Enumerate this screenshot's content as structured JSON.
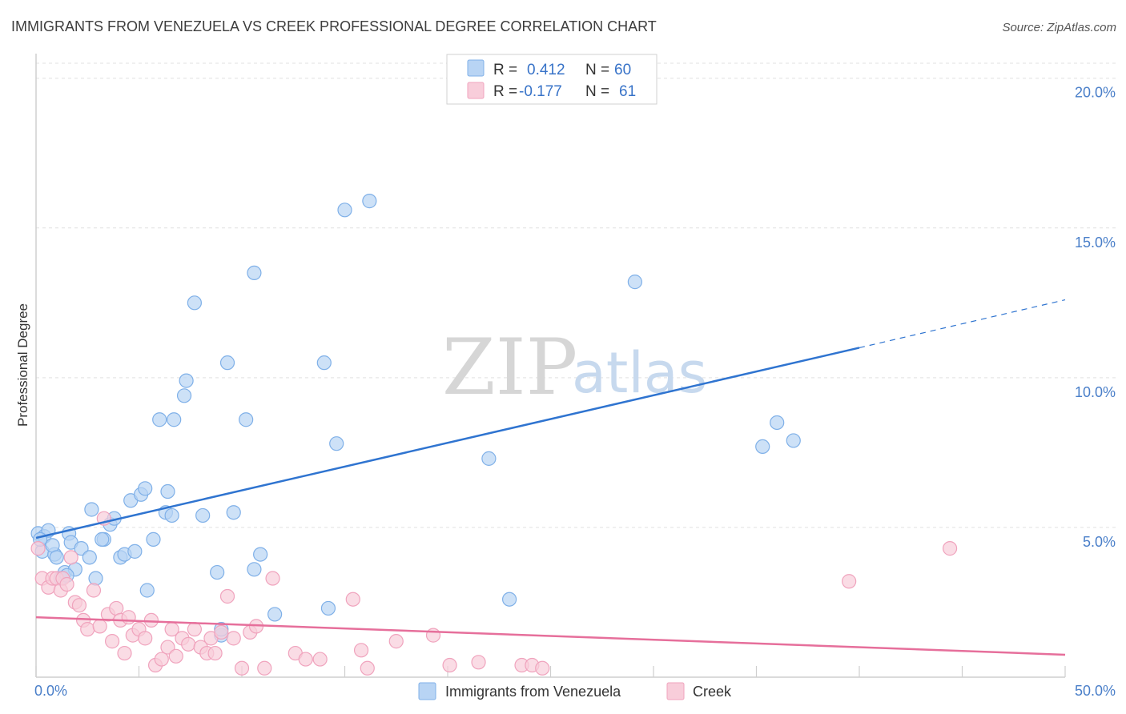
{
  "chart_data": {
    "type": "scatter",
    "title": "IMMIGRANTS FROM VENEZUELA VS CREEK PROFESSIONAL DEGREE CORRELATION CHART",
    "source": "Source: ZipAtlas.com",
    "ylabel": "Professional Degree",
    "xlabel": "",
    "xlim": [
      0,
      50
    ],
    "ylim": [
      0,
      20.5
    ],
    "x_ticks": [
      {
        "value": 0,
        "label": "0.0%"
      },
      {
        "value": 50,
        "label": "50.0%"
      }
    ],
    "y_ticks": [
      {
        "value": 5,
        "label": "5.0%"
      },
      {
        "value": 10,
        "label": "10.0%"
      },
      {
        "value": 15,
        "label": "15.0%"
      },
      {
        "value": 20,
        "label": "20.0%"
      }
    ],
    "watermark": {
      "zip": "ZIP",
      "atlas": "atlas"
    },
    "legend": [
      {
        "r_label": "R =",
        "r_value": "0.412",
        "n_label": "N =",
        "n_value": "60"
      },
      {
        "r_label": "R =",
        "r_value": "-0.177",
        "n_label": "N =",
        "n_value": "61"
      }
    ],
    "series": [
      {
        "name": "Immigrants from Venezuela",
        "color": "#7fb0e8",
        "fill": "#b8d4f4",
        "line_color": "#2f74d0",
        "trend": {
          "x0": 0,
          "y0": 4.65,
          "x1": 40,
          "y1": 11.0,
          "dash_to_x": 50,
          "dash_to_y": 12.6
        },
        "points": [
          [
            0.1,
            4.8
          ],
          [
            0.3,
            4.2
          ],
          [
            0.4,
            4.7
          ],
          [
            0.6,
            4.9
          ],
          [
            0.9,
            4.1
          ],
          [
            0.8,
            4.4
          ],
          [
            1.2,
            3.3
          ],
          [
            1.4,
            3.5
          ],
          [
            1.6,
            4.8
          ],
          [
            1.9,
            3.6
          ],
          [
            1.7,
            4.5
          ],
          [
            2.2,
            4.3
          ],
          [
            2.6,
            4.0
          ],
          [
            2.9,
            3.3
          ],
          [
            3.3,
            4.6
          ],
          [
            3.6,
            5.1
          ],
          [
            3.8,
            5.3
          ],
          [
            4.1,
            4.0
          ],
          [
            4.3,
            4.1
          ],
          [
            4.6,
            5.9
          ],
          [
            4.8,
            4.2
          ],
          [
            5.1,
            6.1
          ],
          [
            5.3,
            6.3
          ],
          [
            5.4,
            2.9
          ],
          [
            5.7,
            4.6
          ],
          [
            6.0,
            8.6
          ],
          [
            6.3,
            5.5
          ],
          [
            6.4,
            6.2
          ],
          [
            6.6,
            5.4
          ],
          [
            6.7,
            8.6
          ],
          [
            7.2,
            9.4
          ],
          [
            7.3,
            9.9
          ],
          [
            7.7,
            12.5
          ],
          [
            8.1,
            5.4
          ],
          [
            8.8,
            3.5
          ],
          [
            9.0,
            1.4
          ],
          [
            9.3,
            10.5
          ],
          [
            9.6,
            5.5
          ],
          [
            9.0,
            1.6
          ],
          [
            10.2,
            8.6
          ],
          [
            10.6,
            13.5
          ],
          [
            10.6,
            3.6
          ],
          [
            10.9,
            4.1
          ],
          [
            11.6,
            2.1
          ],
          [
            14.0,
            10.5
          ],
          [
            14.2,
            2.3
          ],
          [
            14.6,
            7.8
          ],
          [
            15.0,
            15.6
          ],
          [
            16.2,
            15.9
          ],
          [
            22.0,
            7.3
          ],
          [
            23.0,
            2.6
          ],
          [
            29.1,
            13.2
          ],
          [
            35.3,
            7.7
          ],
          [
            36.0,
            8.5
          ],
          [
            36.8,
            7.9
          ],
          [
            0.2,
            4.6
          ],
          [
            1.0,
            4.0
          ],
          [
            2.7,
            5.6
          ],
          [
            3.2,
            4.6
          ],
          [
            1.5,
            3.4
          ]
        ]
      },
      {
        "name": "Creek",
        "color": "#f0a3bd",
        "fill": "#f8cdda",
        "line_color": "#e66f9b",
        "trend": {
          "x0": 0,
          "y0": 2.0,
          "x1": 50,
          "y1": 0.75
        },
        "points": [
          [
            0.1,
            4.3
          ],
          [
            0.3,
            3.3
          ],
          [
            0.6,
            3.0
          ],
          [
            0.8,
            3.3
          ],
          [
            1.0,
            3.3
          ],
          [
            1.2,
            2.9
          ],
          [
            1.3,
            3.3
          ],
          [
            1.5,
            3.1
          ],
          [
            1.7,
            4.0
          ],
          [
            1.9,
            2.5
          ],
          [
            2.1,
            2.4
          ],
          [
            2.3,
            1.9
          ],
          [
            2.5,
            1.6
          ],
          [
            2.8,
            2.9
          ],
          [
            3.1,
            1.7
          ],
          [
            3.3,
            5.3
          ],
          [
            3.5,
            2.1
          ],
          [
            3.7,
            1.2
          ],
          [
            3.9,
            2.3
          ],
          [
            4.1,
            1.9
          ],
          [
            4.3,
            0.8
          ],
          [
            4.5,
            2.0
          ],
          [
            4.7,
            1.4
          ],
          [
            5.0,
            1.6
          ],
          [
            5.3,
            1.3
          ],
          [
            5.6,
            1.9
          ],
          [
            5.8,
            0.4
          ],
          [
            6.1,
            0.6
          ],
          [
            6.4,
            1.0
          ],
          [
            6.6,
            1.6
          ],
          [
            6.8,
            0.7
          ],
          [
            7.1,
            1.3
          ],
          [
            7.4,
            1.1
          ],
          [
            7.7,
            1.6
          ],
          [
            8.0,
            1.0
          ],
          [
            8.3,
            0.8
          ],
          [
            8.5,
            1.3
          ],
          [
            8.7,
            0.8
          ],
          [
            9.0,
            1.5
          ],
          [
            9.3,
            2.7
          ],
          [
            9.6,
            1.3
          ],
          [
            10.0,
            0.3
          ],
          [
            10.4,
            1.5
          ],
          [
            10.7,
            1.7
          ],
          [
            11.1,
            0.3
          ],
          [
            11.5,
            3.3
          ],
          [
            12.6,
            0.8
          ],
          [
            13.1,
            0.6
          ],
          [
            13.8,
            0.6
          ],
          [
            15.4,
            2.6
          ],
          [
            15.8,
            0.9
          ],
          [
            16.1,
            0.3
          ],
          [
            17.5,
            1.2
          ],
          [
            19.3,
            1.4
          ],
          [
            20.1,
            0.4
          ],
          [
            21.5,
            0.5
          ],
          [
            23.6,
            0.4
          ],
          [
            24.1,
            0.4
          ],
          [
            24.6,
            0.3
          ],
          [
            44.4,
            4.3
          ],
          [
            39.5,
            3.2
          ]
        ]
      }
    ]
  }
}
